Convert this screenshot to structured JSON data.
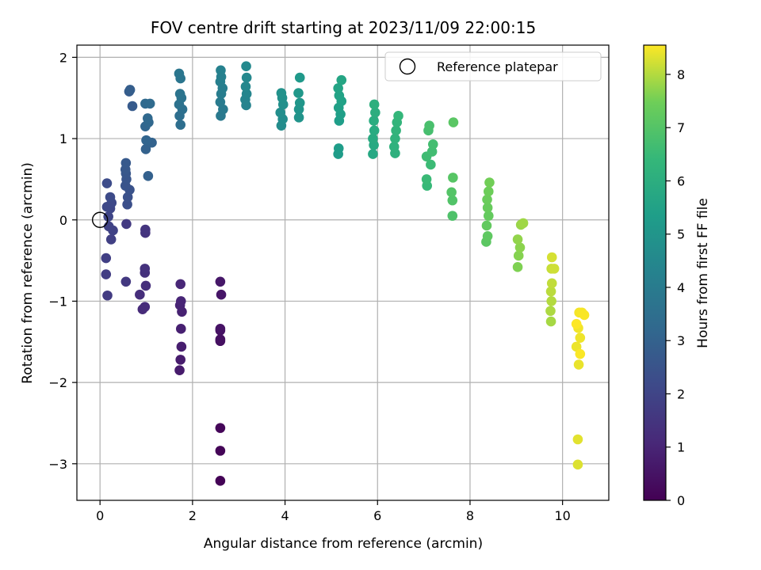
{
  "chart_data": {
    "type": "scatter",
    "title": "FOV centre drift starting at 2023/11/09 22:00:15",
    "xlabel": "Angular distance from reference (arcmin)",
    "ylabel": "Rotation from reference (arcmin)",
    "xlim": [
      -0.5,
      11.0
    ],
    "ylim": [
      -3.45,
      2.15
    ],
    "xticks": [
      0,
      2,
      4,
      6,
      8,
      10
    ],
    "xtick_labels": [
      "0",
      "2",
      "4",
      "6",
      "8",
      "10"
    ],
    "yticks": [
      -3,
      -2,
      -1,
      0,
      1,
      2
    ],
    "ytick_labels": [
      "−3",
      "−2",
      "−1",
      "0",
      "1",
      "2"
    ],
    "grid": true,
    "legend": {
      "placement": "top-right",
      "entries": [
        {
          "label": "Reference platepar",
          "marker": "open-circle"
        }
      ]
    },
    "reference_point": {
      "x": 0,
      "y": 0
    },
    "colorbar": {
      "label": "Hours from first FF file",
      "colormap": "viridis",
      "range": [
        0,
        8.55
      ],
      "ticks": [
        0,
        1,
        2,
        3,
        4,
        5,
        6,
        7,
        8
      ],
      "tick_labels": [
        "0",
        "1",
        "2",
        "3",
        "4",
        "5",
        "6",
        "7",
        "8"
      ]
    },
    "points": [
      {
        "x": 2.6,
        "y": -3.21,
        "h": 0.05
      },
      {
        "x": 2.6,
        "y": -2.84,
        "h": 0.1
      },
      {
        "x": 2.6,
        "y": -2.56,
        "h": 0.15
      },
      {
        "x": 2.6,
        "y": -1.49,
        "h": 0.35
      },
      {
        "x": 2.6,
        "y": -1.47,
        "h": 0.4
      },
      {
        "x": 2.6,
        "y": -1.36,
        "h": 0.45
      },
      {
        "x": 2.6,
        "y": -1.34,
        "h": 0.5
      },
      {
        "x": 2.62,
        "y": -0.92,
        "h": 0.55
      },
      {
        "x": 2.6,
        "y": -0.76,
        "h": 0.6
      },
      {
        "x": 1.72,
        "y": -1.85,
        "h": 0.7
      },
      {
        "x": 1.74,
        "y": -1.72,
        "h": 0.75
      },
      {
        "x": 1.76,
        "y": -1.56,
        "h": 0.8
      },
      {
        "x": 1.75,
        "y": -1.34,
        "h": 0.85
      },
      {
        "x": 1.77,
        "y": -1.13,
        "h": 0.9
      },
      {
        "x": 1.73,
        "y": -1.05,
        "h": 0.95
      },
      {
        "x": 1.75,
        "y": -1.0,
        "h": 1.0
      },
      {
        "x": 1.74,
        "y": -0.79,
        "h": 1.05
      },
      {
        "x": 0.92,
        "y": -1.1,
        "h": 1.15
      },
      {
        "x": 0.97,
        "y": -1.07,
        "h": 1.2
      },
      {
        "x": 0.86,
        "y": -0.92,
        "h": 1.25
      },
      {
        "x": 0.99,
        "y": -0.81,
        "h": 1.3
      },
      {
        "x": 0.97,
        "y": -0.65,
        "h": 1.35
      },
      {
        "x": 0.97,
        "y": -0.6,
        "h": 1.4
      },
      {
        "x": 0.98,
        "y": -0.16,
        "h": 1.45
      },
      {
        "x": 0.98,
        "y": -0.12,
        "h": 1.5
      },
      {
        "x": 0.56,
        "y": -0.76,
        "h": 1.6
      },
      {
        "x": 0.57,
        "y": -0.05,
        "h": 1.65
      },
      {
        "x": 0.16,
        "y": -0.93,
        "h": 1.7
      },
      {
        "x": 0.13,
        "y": -0.67,
        "h": 1.75
      },
      {
        "x": 0.13,
        "y": -0.47,
        "h": 1.8
      },
      {
        "x": 0.24,
        "y": -0.24,
        "h": 1.85
      },
      {
        "x": 0.28,
        "y": -0.13,
        "h": 1.9
      },
      {
        "x": 0.19,
        "y": -0.08,
        "h": 1.95
      },
      {
        "x": 0.18,
        "y": 0.04,
        "h": 2.0
      },
      {
        "x": 0.22,
        "y": 0.14,
        "h": 2.05
      },
      {
        "x": 0.15,
        "y": 0.16,
        "h": 2.1
      },
      {
        "x": 0.25,
        "y": 0.21,
        "h": 2.15
      },
      {
        "x": 0.22,
        "y": 0.28,
        "h": 2.2
      },
      {
        "x": 0.15,
        "y": 0.45,
        "h": 2.25
      },
      {
        "x": 0.59,
        "y": 0.19,
        "h": 2.35
      },
      {
        "x": 0.6,
        "y": 0.28,
        "h": 2.4
      },
      {
        "x": 0.64,
        "y": 0.37,
        "h": 2.45
      },
      {
        "x": 0.55,
        "y": 0.42,
        "h": 2.5
      },
      {
        "x": 0.57,
        "y": 0.5,
        "h": 2.55
      },
      {
        "x": 0.56,
        "y": 0.57,
        "h": 2.6
      },
      {
        "x": 0.55,
        "y": 0.62,
        "h": 2.65
      },
      {
        "x": 0.56,
        "y": 0.7,
        "h": 2.7
      },
      {
        "x": 0.7,
        "y": 1.4,
        "h": 2.75
      },
      {
        "x": 0.63,
        "y": 1.58,
        "h": 2.8
      },
      {
        "x": 0.65,
        "y": 1.6,
        "h": 2.85
      },
      {
        "x": 1.04,
        "y": 0.54,
        "h": 2.95
      },
      {
        "x": 0.99,
        "y": 0.87,
        "h": 3.0
      },
      {
        "x": 1.12,
        "y": 0.95,
        "h": 3.05
      },
      {
        "x": 1.0,
        "y": 0.98,
        "h": 3.1
      },
      {
        "x": 0.98,
        "y": 1.15,
        "h": 3.15
      },
      {
        "x": 1.05,
        "y": 1.2,
        "h": 3.2
      },
      {
        "x": 1.03,
        "y": 1.25,
        "h": 3.25
      },
      {
        "x": 0.98,
        "y": 1.43,
        "h": 3.3
      },
      {
        "x": 1.08,
        "y": 1.43,
        "h": 3.35
      },
      {
        "x": 1.74,
        "y": 1.17,
        "h": 3.45
      },
      {
        "x": 1.72,
        "y": 1.28,
        "h": 3.5
      },
      {
        "x": 1.78,
        "y": 1.36,
        "h": 3.55
      },
      {
        "x": 1.71,
        "y": 1.42,
        "h": 3.6
      },
      {
        "x": 1.76,
        "y": 1.5,
        "h": 3.65
      },
      {
        "x": 1.73,
        "y": 1.55,
        "h": 3.7
      },
      {
        "x": 1.74,
        "y": 1.74,
        "h": 3.75
      },
      {
        "x": 1.71,
        "y": 1.8,
        "h": 3.8
      },
      {
        "x": 2.61,
        "y": 1.28,
        "h": 3.9
      },
      {
        "x": 2.66,
        "y": 1.36,
        "h": 3.95
      },
      {
        "x": 2.6,
        "y": 1.45,
        "h": 4.0
      },
      {
        "x": 2.62,
        "y": 1.55,
        "h": 4.05
      },
      {
        "x": 2.65,
        "y": 1.62,
        "h": 4.1
      },
      {
        "x": 2.6,
        "y": 1.7,
        "h": 4.15
      },
      {
        "x": 2.62,
        "y": 1.76,
        "h": 4.2
      },
      {
        "x": 2.61,
        "y": 1.84,
        "h": 4.25
      },
      {
        "x": 3.16,
        "y": 1.41,
        "h": 4.3
      },
      {
        "x": 3.14,
        "y": 1.48,
        "h": 4.35
      },
      {
        "x": 3.17,
        "y": 1.55,
        "h": 4.4
      },
      {
        "x": 3.15,
        "y": 1.64,
        "h": 4.45
      },
      {
        "x": 3.17,
        "y": 1.75,
        "h": 4.5
      },
      {
        "x": 3.16,
        "y": 1.89,
        "h": 4.55
      },
      {
        "x": 3.92,
        "y": 1.16,
        "h": 4.65
      },
      {
        "x": 3.95,
        "y": 1.24,
        "h": 4.7
      },
      {
        "x": 3.9,
        "y": 1.32,
        "h": 4.75
      },
      {
        "x": 3.96,
        "y": 1.42,
        "h": 4.8
      },
      {
        "x": 3.94,
        "y": 1.5,
        "h": 4.85
      },
      {
        "x": 3.92,
        "y": 1.56,
        "h": 4.9
      },
      {
        "x": 4.3,
        "y": 1.26,
        "h": 4.95
      },
      {
        "x": 4.3,
        "y": 1.36,
        "h": 5.0
      },
      {
        "x": 4.32,
        "y": 1.44,
        "h": 5.05
      },
      {
        "x": 4.29,
        "y": 1.56,
        "h": 5.1
      },
      {
        "x": 4.32,
        "y": 1.75,
        "h": 5.15
      },
      {
        "x": 5.15,
        "y": 0.81,
        "h": 5.25
      },
      {
        "x": 5.16,
        "y": 0.88,
        "h": 5.3
      },
      {
        "x": 5.17,
        "y": 1.22,
        "h": 5.35
      },
      {
        "x": 5.2,
        "y": 1.3,
        "h": 5.4
      },
      {
        "x": 5.16,
        "y": 1.38,
        "h": 5.45
      },
      {
        "x": 5.22,
        "y": 1.46,
        "h": 5.5
      },
      {
        "x": 5.17,
        "y": 1.53,
        "h": 5.55
      },
      {
        "x": 5.15,
        "y": 1.62,
        "h": 5.6
      },
      {
        "x": 5.22,
        "y": 1.72,
        "h": 5.65
      },
      {
        "x": 5.9,
        "y": 0.81,
        "h": 5.75
      },
      {
        "x": 5.92,
        "y": 0.92,
        "h": 5.8
      },
      {
        "x": 5.9,
        "y": 1.0,
        "h": 5.85
      },
      {
        "x": 5.93,
        "y": 1.1,
        "h": 5.9
      },
      {
        "x": 5.92,
        "y": 1.22,
        "h": 5.95
      },
      {
        "x": 5.95,
        "y": 1.32,
        "h": 6.0
      },
      {
        "x": 5.93,
        "y": 1.42,
        "h": 6.05
      },
      {
        "x": 6.38,
        "y": 0.82,
        "h": 6.1
      },
      {
        "x": 6.36,
        "y": 0.9,
        "h": 6.15
      },
      {
        "x": 6.38,
        "y": 1.0,
        "h": 6.2
      },
      {
        "x": 6.4,
        "y": 1.1,
        "h": 6.25
      },
      {
        "x": 6.42,
        "y": 1.2,
        "h": 6.3
      },
      {
        "x": 6.45,
        "y": 1.28,
        "h": 6.35
      },
      {
        "x": 7.07,
        "y": 0.42,
        "h": 6.45
      },
      {
        "x": 7.06,
        "y": 0.5,
        "h": 6.5
      },
      {
        "x": 7.15,
        "y": 0.68,
        "h": 6.55
      },
      {
        "x": 7.06,
        "y": 0.78,
        "h": 6.6
      },
      {
        "x": 7.18,
        "y": 0.84,
        "h": 6.65
      },
      {
        "x": 7.2,
        "y": 0.93,
        "h": 6.7
      },
      {
        "x": 7.1,
        "y": 1.1,
        "h": 6.75
      },
      {
        "x": 7.12,
        "y": 1.16,
        "h": 6.8
      },
      {
        "x": 7.62,
        "y": 0.05,
        "h": 6.9
      },
      {
        "x": 7.62,
        "y": 0.24,
        "h": 6.95
      },
      {
        "x": 7.6,
        "y": 0.34,
        "h": 7.0
      },
      {
        "x": 7.63,
        "y": 0.52,
        "h": 7.05
      },
      {
        "x": 7.64,
        "y": 1.2,
        "h": 7.1
      },
      {
        "x": 8.35,
        "y": -0.27,
        "h": 7.15
      },
      {
        "x": 8.38,
        "y": -0.2,
        "h": 7.2
      },
      {
        "x": 8.36,
        "y": -0.07,
        "h": 7.25
      },
      {
        "x": 8.4,
        "y": 0.05,
        "h": 7.3
      },
      {
        "x": 8.38,
        "y": 0.15,
        "h": 7.35
      },
      {
        "x": 8.37,
        "y": 0.25,
        "h": 7.4
      },
      {
        "x": 8.4,
        "y": 0.35,
        "h": 7.45
      },
      {
        "x": 8.42,
        "y": 0.46,
        "h": 7.5
      },
      {
        "x": 9.03,
        "y": -0.58,
        "h": 7.6
      },
      {
        "x": 9.05,
        "y": -0.44,
        "h": 7.65
      },
      {
        "x": 9.08,
        "y": -0.34,
        "h": 7.7
      },
      {
        "x": 9.03,
        "y": -0.24,
        "h": 7.75
      },
      {
        "x": 9.1,
        "y": -0.06,
        "h": 7.8
      },
      {
        "x": 9.15,
        "y": -0.04,
        "h": 7.85
      },
      {
        "x": 9.75,
        "y": -1.25,
        "h": 7.9
      },
      {
        "x": 9.74,
        "y": -1.12,
        "h": 7.95
      },
      {
        "x": 9.76,
        "y": -1.0,
        "h": 8.0
      },
      {
        "x": 9.75,
        "y": -0.88,
        "h": 8.05
      },
      {
        "x": 9.77,
        "y": -0.78,
        "h": 8.1
      },
      {
        "x": 9.76,
        "y": -0.6,
        "h": 8.15
      },
      {
        "x": 9.82,
        "y": -0.6,
        "h": 8.2
      },
      {
        "x": 9.77,
        "y": -0.46,
        "h": 8.25
      },
      {
        "x": 10.33,
        "y": -3.01,
        "h": 8.3
      },
      {
        "x": 10.33,
        "y": -2.7,
        "h": 8.35
      },
      {
        "x": 10.35,
        "y": -1.78,
        "h": 8.4
      },
      {
        "x": 10.3,
        "y": -1.56,
        "h": 8.42
      },
      {
        "x": 10.38,
        "y": -1.45,
        "h": 8.44
      },
      {
        "x": 10.34,
        "y": -1.33,
        "h": 8.46
      },
      {
        "x": 10.36,
        "y": -1.14,
        "h": 8.48
      },
      {
        "x": 10.42,
        "y": -1.14,
        "h": 8.5
      },
      {
        "x": 10.47,
        "y": -1.17,
        "h": 8.52
      },
      {
        "x": 10.38,
        "y": -1.65,
        "h": 8.53
      },
      {
        "x": 10.3,
        "y": -1.28,
        "h": 8.54
      }
    ]
  }
}
